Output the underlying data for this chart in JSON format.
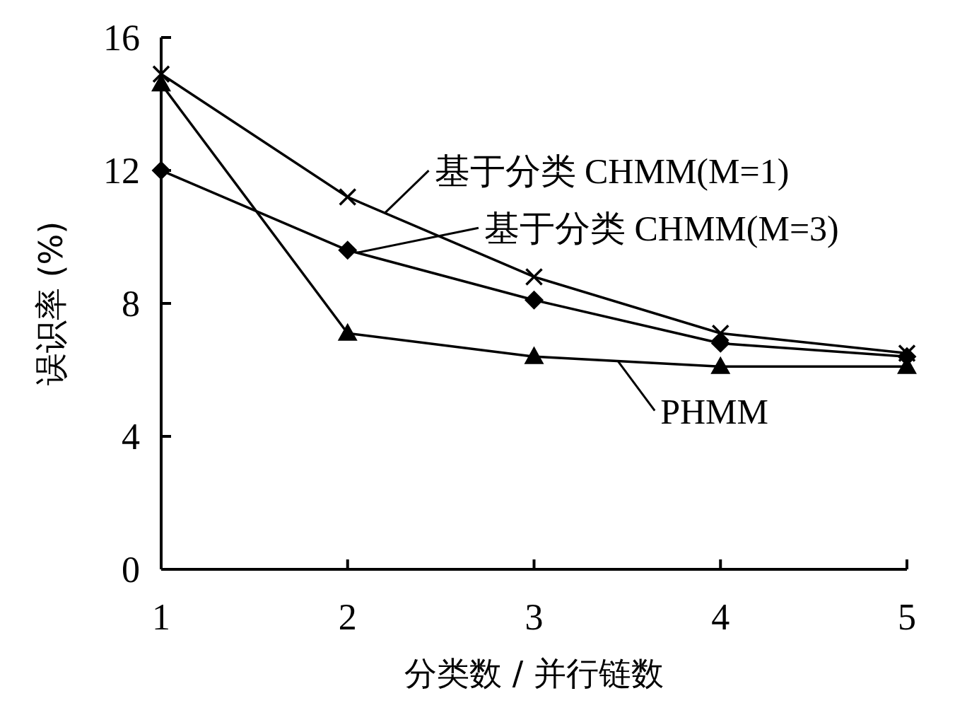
{
  "chart_data": {
    "type": "line",
    "xlabel": "分类数 / 并行链数",
    "ylabel": "误识率 (%)",
    "x": [
      1,
      2,
      3,
      4,
      5
    ],
    "xlim": [
      1,
      5
    ],
    "xticks": [
      1,
      2,
      3,
      4,
      5
    ],
    "ylim": [
      0,
      16
    ],
    "yticks": [
      0,
      4,
      8,
      12,
      16
    ],
    "grid": false,
    "legend": "right",
    "line_style": "solid",
    "series": [
      {
        "name": "基于分类 CHMM(M=1)",
        "color": "#000000",
        "marker": "cross",
        "values": [
          14.9,
          11.2,
          8.8,
          7.1,
          6.5
        ]
      },
      {
        "name": "基于分类 CHMM(M=3)",
        "color": "#000000",
        "marker": "diamond",
        "values": [
          12.0,
          9.6,
          8.1,
          6.8,
          6.4
        ]
      },
      {
        "name": "PHMM",
        "color": "#000000",
        "marker": "triangle",
        "values": [
          14.6,
          7.1,
          6.4,
          6.1,
          6.1
        ]
      }
    ]
  }
}
